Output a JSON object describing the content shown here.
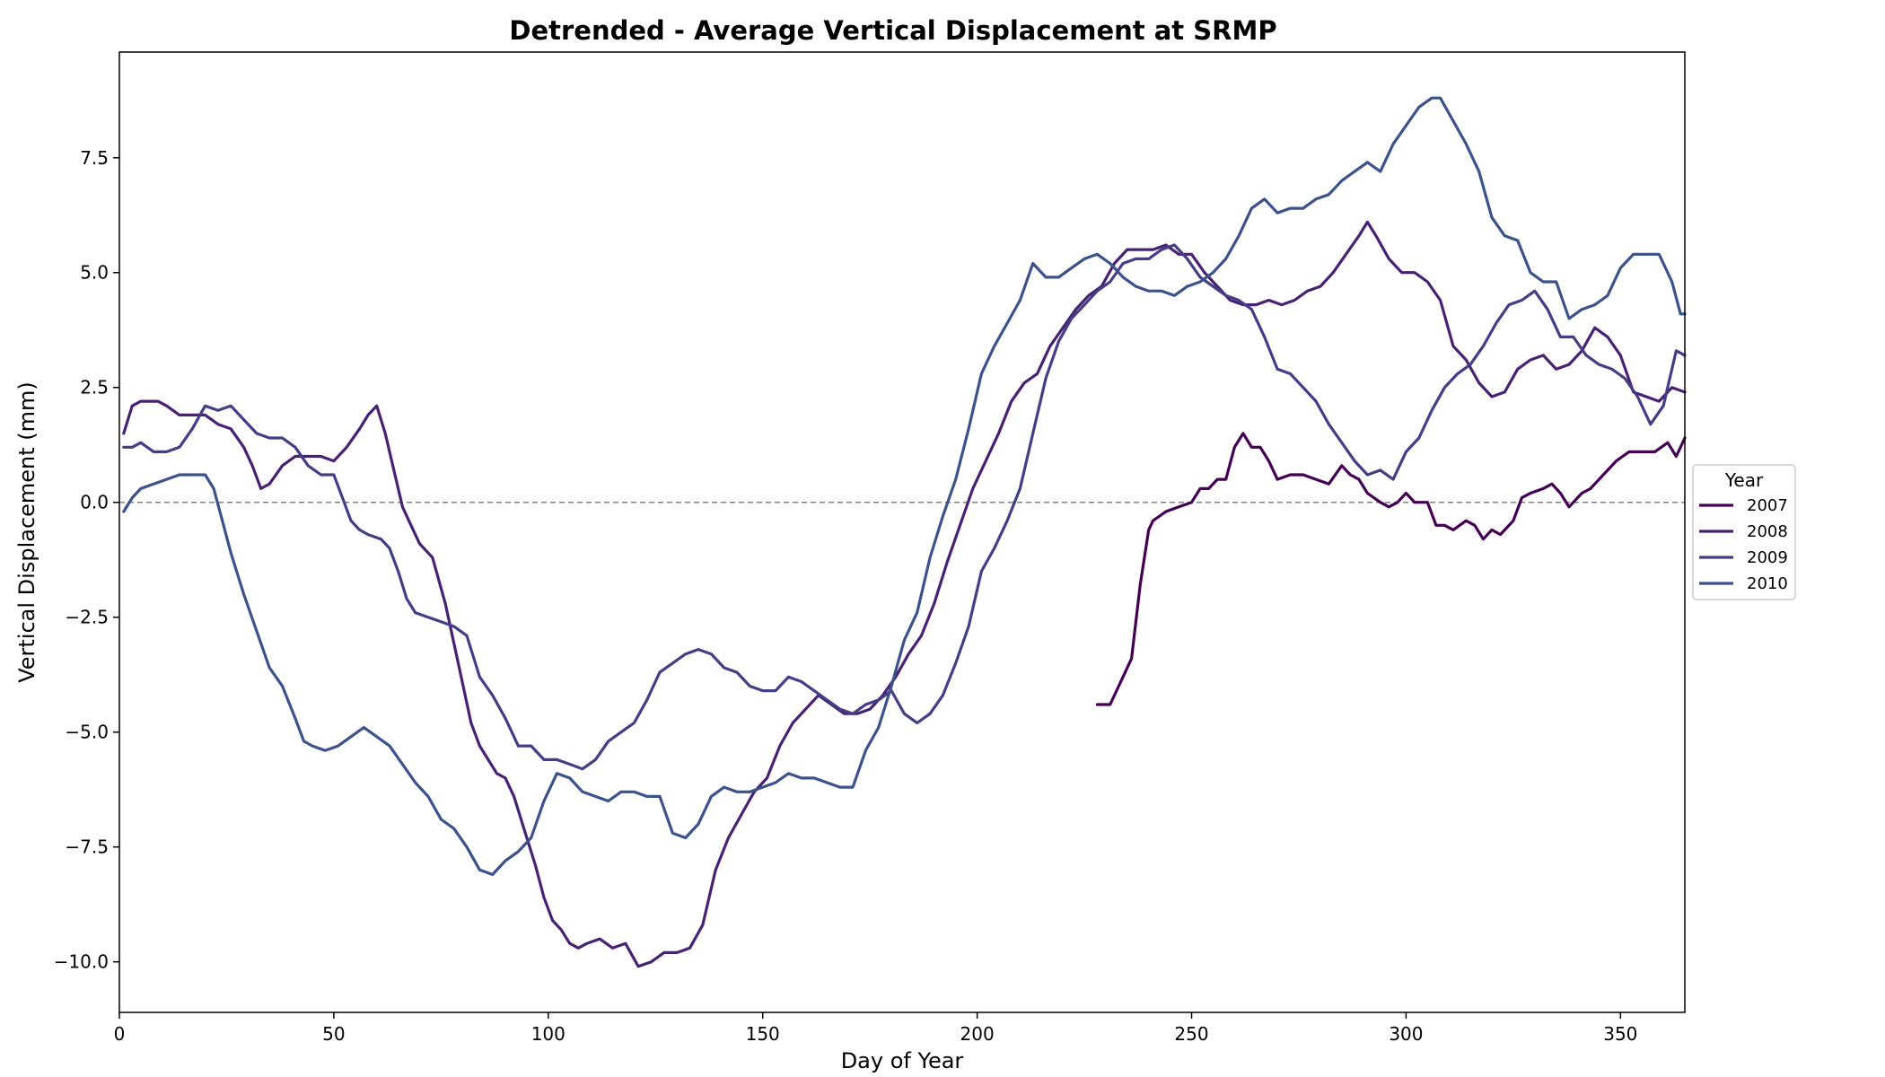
{
  "chart_data": {
    "type": "line",
    "title": "Detrended - Average Vertical Displacement at SRMP",
    "xlabel": "Day of Year",
    "ylabel": "Vertical Displacement  (mm)",
    "xlim": [
      0,
      365
    ],
    "ylim": [
      -11.1,
      9.8
    ],
    "xticks": [
      0,
      50,
      100,
      150,
      200,
      250,
      300,
      350
    ],
    "xtick_labels": [
      "0",
      "50",
      "100",
      "150",
      "200",
      "250",
      "300",
      "350"
    ],
    "yticks": [
      -10.0,
      -7.5,
      -5.0,
      -2.5,
      0.0,
      2.5,
      5.0,
      7.5
    ],
    "ytick_labels": [
      "−10.0",
      "−7.5",
      "−5.0",
      "−2.5",
      "0.0",
      "2.5",
      "5.0",
      "7.5"
    ],
    "grid": false,
    "reference_line": {
      "y": 0.0,
      "style": "dashed",
      "color": "#808080"
    },
    "legend": {
      "title": "Year",
      "placement": "center-right-outside"
    },
    "series": [
      {
        "name": "2007",
        "color": "#440154",
        "x": [
          228,
          231,
          233,
          236,
          238,
          240,
          241,
          244,
          247,
          250,
          252,
          254,
          256,
          258,
          260,
          262,
          264,
          266,
          268,
          270,
          273,
          276,
          279,
          282,
          285,
          287,
          289,
          291,
          294,
          296,
          298,
          300,
          302,
          305,
          307,
          309,
          311,
          314,
          316,
          318,
          320,
          322,
          325,
          327,
          329,
          332,
          334,
          336,
          338,
          341,
          343,
          346,
          349,
          352,
          355,
          358,
          361,
          363,
          365
        ],
        "y": [
          -4.4,
          -4.4,
          -4.0,
          -3.4,
          -1.8,
          -0.6,
          -0.4,
          -0.2,
          -0.1,
          0.0,
          0.3,
          0.3,
          0.5,
          0.5,
          1.2,
          1.5,
          1.2,
          1.2,
          0.9,
          0.5,
          0.6,
          0.6,
          0.5,
          0.4,
          0.8,
          0.6,
          0.5,
          0.2,
          0.0,
          -0.1,
          0.0,
          0.2,
          0.0,
          0.0,
          -0.5,
          -0.5,
          -0.6,
          -0.4,
          -0.5,
          -0.8,
          -0.6,
          -0.7,
          -0.4,
          0.1,
          0.2,
          0.3,
          0.4,
          0.2,
          -0.1,
          0.2,
          0.3,
          0.6,
          0.9,
          1.1,
          1.1,
          1.1,
          1.3,
          1.0,
          1.4
        ]
      },
      {
        "name": "2008",
        "color": "#482173",
        "x": [
          1,
          3,
          5,
          7,
          9,
          11,
          14,
          17,
          20,
          23,
          26,
          29,
          31,
          33,
          35,
          38,
          41,
          44,
          47,
          50,
          53,
          56,
          58,
          60,
          62,
          64,
          66,
          68,
          70,
          73,
          76,
          79,
          82,
          84,
          86,
          88,
          90,
          92,
          95,
          97,
          99,
          101,
          103,
          105,
          107,
          109,
          112,
          115,
          118,
          121,
          124,
          127,
          130,
          133,
          136,
          139,
          142,
          145,
          148,
          151,
          154,
          157,
          160,
          163,
          166,
          169,
          172,
          175,
          178,
          181,
          184,
          187,
          190,
          193,
          196,
          199,
          202,
          205,
          208,
          211,
          214,
          217,
          220,
          223,
          226,
          229,
          232,
          235,
          238,
          241,
          244,
          247,
          250,
          253,
          256,
          259,
          262,
          265,
          268,
          271,
          274,
          277,
          280,
          283,
          286,
          289,
          291,
          293,
          296,
          299,
          302,
          305,
          308,
          311,
          314,
          317,
          320,
          323,
          326,
          329,
          332,
          335,
          338,
          341,
          344,
          347,
          350,
          353,
          356,
          359,
          362,
          365
        ],
        "y": [
          1.5,
          2.1,
          2.2,
          2.2,
          2.2,
          2.1,
          1.9,
          1.9,
          1.9,
          1.7,
          1.6,
          1.2,
          0.8,
          0.3,
          0.4,
          0.8,
          1.0,
          1.0,
          1.0,
          0.9,
          1.2,
          1.6,
          1.9,
          2.1,
          1.5,
          0.7,
          -0.1,
          -0.5,
          -0.9,
          -1.2,
          -2.2,
          -3.5,
          -4.8,
          -5.3,
          -5.6,
          -5.9,
          -6.0,
          -6.4,
          -7.3,
          -7.9,
          -8.6,
          -9.1,
          -9.3,
          -9.6,
          -9.7,
          -9.6,
          -9.5,
          -9.7,
          -9.6,
          -10.1,
          -10.0,
          -9.8,
          -9.8,
          -9.7,
          -9.2,
          -8.0,
          -7.3,
          -6.8,
          -6.3,
          -6.0,
          -5.3,
          -4.8,
          -4.5,
          -4.2,
          -4.4,
          -4.6,
          -4.6,
          -4.5,
          -4.2,
          -3.8,
          -3.3,
          -2.9,
          -2.2,
          -1.3,
          -0.5,
          0.3,
          0.9,
          1.5,
          2.2,
          2.6,
          2.8,
          3.4,
          3.8,
          4.2,
          4.5,
          4.7,
          5.2,
          5.5,
          5.5,
          5.5,
          5.6,
          5.4,
          5.4,
          5.0,
          4.7,
          4.4,
          4.3,
          4.3,
          4.4,
          4.3,
          4.4,
          4.6,
          4.7,
          5.0,
          5.4,
          5.8,
          6.1,
          5.8,
          5.3,
          5.0,
          5.0,
          4.8,
          4.4,
          3.4,
          3.1,
          2.6,
          2.3,
          2.4,
          2.9,
          3.1,
          3.2,
          2.9,
          3.0,
          3.3,
          3.8,
          3.6,
          3.2,
          2.4,
          2.3,
          2.2,
          2.5,
          2.4
        ]
      },
      {
        "name": "2009",
        "color": "#433e85",
        "x": [
          1,
          3,
          5,
          8,
          11,
          14,
          17,
          20,
          23,
          26,
          29,
          32,
          35,
          38,
          41,
          44,
          47,
          50,
          52,
          54,
          56,
          58,
          61,
          63,
          65,
          67,
          69,
          72,
          75,
          78,
          81,
          84,
          87,
          90,
          93,
          96,
          99,
          102,
          105,
          108,
          111,
          114,
          117,
          120,
          123,
          126,
          129,
          132,
          135,
          138,
          141,
          144,
          147,
          150,
          153,
          156,
          159,
          162,
          165,
          168,
          171,
          174,
          177,
          180,
          183,
          186,
          189,
          192,
          195,
          198,
          201,
          204,
          207,
          210,
          213,
          216,
          219,
          222,
          225,
          228,
          231,
          234,
          237,
          240,
          243,
          246,
          249,
          252,
          255,
          258,
          261,
          264,
          267,
          270,
          273,
          276,
          279,
          282,
          285,
          288,
          291,
          294,
          297,
          300,
          303,
          306,
          309,
          312,
          315,
          318,
          321,
          324,
          327,
          330,
          333,
          336,
          339,
          342,
          345,
          348,
          351,
          354,
          357,
          360,
          363,
          365
        ],
        "y": [
          1.2,
          1.2,
          1.3,
          1.1,
          1.1,
          1.2,
          1.6,
          2.1,
          2.0,
          2.1,
          1.8,
          1.5,
          1.4,
          1.4,
          1.2,
          0.8,
          0.6,
          0.6,
          0.1,
          -0.4,
          -0.6,
          -0.7,
          -0.8,
          -1.0,
          -1.5,
          -2.1,
          -2.4,
          -2.5,
          -2.6,
          -2.7,
          -2.9,
          -3.8,
          -4.2,
          -4.7,
          -5.3,
          -5.3,
          -5.6,
          -5.6,
          -5.7,
          -5.8,
          -5.6,
          -5.2,
          -5.0,
          -4.8,
          -4.3,
          -3.7,
          -3.5,
          -3.3,
          -3.2,
          -3.3,
          -3.6,
          -3.7,
          -4.0,
          -4.1,
          -4.1,
          -3.8,
          -3.9,
          -4.1,
          -4.3,
          -4.5,
          -4.6,
          -4.4,
          -4.3,
          -4.1,
          -4.6,
          -4.8,
          -4.6,
          -4.2,
          -3.5,
          -2.7,
          -1.5,
          -1.0,
          -0.4,
          0.3,
          1.5,
          2.7,
          3.5,
          4.0,
          4.3,
          4.6,
          4.8,
          5.2,
          5.3,
          5.3,
          5.5,
          5.6,
          5.3,
          4.9,
          4.7,
          4.5,
          4.4,
          4.2,
          3.6,
          2.9,
          2.8,
          2.5,
          2.2,
          1.7,
          1.3,
          0.9,
          0.6,
          0.7,
          0.5,
          1.1,
          1.4,
          2.0,
          2.5,
          2.8,
          3.0,
          3.4,
          3.9,
          4.3,
          4.4,
          4.6,
          4.2,
          3.6,
          3.6,
          3.2,
          3.0,
          2.9,
          2.7,
          2.3,
          1.7,
          2.1,
          3.3,
          3.2
        ]
      },
      {
        "name": "2010",
        "color": "#3b528b",
        "x": [
          1,
          3,
          5,
          8,
          11,
          14,
          17,
          20,
          22,
          24,
          26,
          29,
          32,
          35,
          38,
          41,
          43,
          45,
          48,
          51,
          54,
          57,
          60,
          63,
          66,
          69,
          72,
          75,
          78,
          81,
          84,
          87,
          90,
          93,
          96,
          99,
          102,
          105,
          108,
          111,
          114,
          117,
          120,
          123,
          126,
          129,
          132,
          135,
          138,
          141,
          144,
          147,
          150,
          153,
          156,
          159,
          162,
          165,
          168,
          171,
          174,
          177,
          180,
          183,
          186,
          189,
          192,
          195,
          198,
          201,
          204,
          207,
          210,
          213,
          216,
          219,
          222,
          225,
          228,
          231,
          234,
          237,
          240,
          243,
          246,
          249,
          252,
          255,
          258,
          261,
          264,
          267,
          270,
          273,
          276,
          279,
          282,
          285,
          288,
          291,
          294,
          297,
          300,
          303,
          306,
          308,
          311,
          314,
          317,
          320,
          323,
          326,
          329,
          332,
          335,
          338,
          341,
          344,
          347,
          350,
          353,
          356,
          359,
          362,
          364,
          365
        ],
        "y": [
          -0.2,
          0.1,
          0.3,
          0.4,
          0.5,
          0.6,
          0.6,
          0.6,
          0.3,
          -0.4,
          -1.1,
          -2.0,
          -2.8,
          -3.6,
          -4.0,
          -4.7,
          -5.2,
          -5.3,
          -5.4,
          -5.3,
          -5.1,
          -4.9,
          -5.1,
          -5.3,
          -5.7,
          -6.1,
          -6.4,
          -6.9,
          -7.1,
          -7.5,
          -8.0,
          -8.1,
          -7.8,
          -7.6,
          -7.3,
          -6.5,
          -5.9,
          -6.0,
          -6.3,
          -6.4,
          -6.5,
          -6.3,
          -6.3,
          -6.4,
          -6.4,
          -7.2,
          -7.3,
          -7.0,
          -6.4,
          -6.2,
          -6.3,
          -6.3,
          -6.2,
          -6.1,
          -5.9,
          -6.0,
          -6.0,
          -6.1,
          -6.2,
          -6.2,
          -5.4,
          -4.9,
          -4.0,
          -3.0,
          -2.4,
          -1.2,
          -0.3,
          0.5,
          1.6,
          2.8,
          3.4,
          3.9,
          4.4,
          5.2,
          4.9,
          4.9,
          5.1,
          5.3,
          5.4,
          5.2,
          4.9,
          4.7,
          4.6,
          4.6,
          4.5,
          4.7,
          4.8,
          5.0,
          5.3,
          5.8,
          6.4,
          6.6,
          6.3,
          6.4,
          6.4,
          6.6,
          6.7,
          7.0,
          7.2,
          7.4,
          7.2,
          7.8,
          8.2,
          8.6,
          8.8,
          8.8,
          8.3,
          7.8,
          7.2,
          6.2,
          5.8,
          5.7,
          5.0,
          4.8,
          4.8,
          4.0,
          4.2,
          4.3,
          4.5,
          5.1,
          5.4,
          5.4,
          5.4,
          4.8,
          4.1,
          4.1
        ]
      }
    ]
  }
}
